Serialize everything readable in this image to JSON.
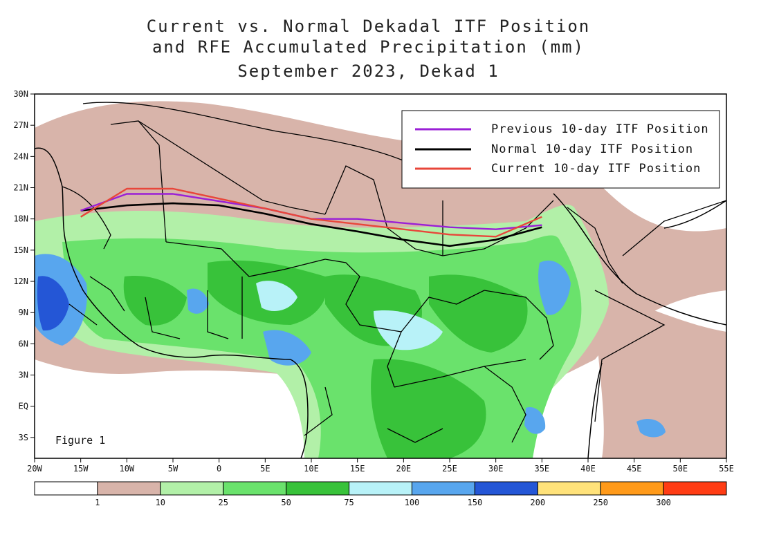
{
  "title": {
    "line1": "Current vs. Normal Dekadal ITF Position",
    "line2": "and RFE Accumulated Precipitation (mm)",
    "line3": "September 2023, Dekad 1"
  },
  "figure_label": "Figure 1",
  "axes": {
    "lat_labels": [
      "30N",
      "27N",
      "24N",
      "21N",
      "18N",
      "15N",
      "12N",
      "9N",
      "6N",
      "3N",
      "EQ",
      "3S"
    ],
    "lat_values": [
      30,
      27,
      24,
      21,
      18,
      15,
      12,
      9,
      6,
      3,
      0,
      -3
    ],
    "lon_labels": [
      "20W",
      "15W",
      "10W",
      "5W",
      "0",
      "5E",
      "10E",
      "15E",
      "20E",
      "25E",
      "30E",
      "35E",
      "40E",
      "45E",
      "50E",
      "55E"
    ],
    "lon_values": [
      -20,
      -15,
      -10,
      -5,
      0,
      5,
      10,
      15,
      20,
      25,
      30,
      35,
      40,
      45,
      50,
      55
    ],
    "lon_range": [
      -20,
      55
    ],
    "lat_range": [
      -5,
      30
    ]
  },
  "legend": {
    "items": [
      {
        "label": "Previous 10-day ITF Position",
        "color": "#9a1fd6",
        "key": "previous"
      },
      {
        "label": "Normal 10-day ITF Position",
        "color": "#000000",
        "key": "normal"
      },
      {
        "label": "Current 10-day ITF Position",
        "color": "#e8463a",
        "key": "current"
      }
    ]
  },
  "itf_lines": {
    "previous": [
      [
        -15,
        18.8
      ],
      [
        -10,
        20.4
      ],
      [
        -5,
        20.4
      ],
      [
        5,
        19.0
      ],
      [
        10,
        18.0
      ],
      [
        15,
        18.0
      ],
      [
        25,
        17.2
      ],
      [
        30,
        17.0
      ],
      [
        35,
        17.4
      ]
    ],
    "normal": [
      [
        -15,
        18.8
      ],
      [
        -10,
        19.3
      ],
      [
        -5,
        19.5
      ],
      [
        0,
        19.3
      ],
      [
        5,
        18.5
      ],
      [
        10,
        17.5
      ],
      [
        15,
        16.8
      ],
      [
        20,
        16.0
      ],
      [
        25,
        15.4
      ],
      [
        30,
        16.0
      ],
      [
        35,
        17.2
      ]
    ],
    "current": [
      [
        -15,
        18.2
      ],
      [
        -10,
        20.9
      ],
      [
        -5,
        20.9
      ],
      [
        5,
        19.0
      ],
      [
        10,
        18.0
      ],
      [
        15,
        17.5
      ],
      [
        25,
        16.5
      ],
      [
        30,
        16.3
      ],
      [
        35,
        18.2
      ]
    ]
  },
  "colorbar": {
    "colors": [
      "#ffffff",
      "#d8b4aa",
      "#b2f0a8",
      "#6ae26c",
      "#38c23a",
      "#b8f2f8",
      "#58a6ee",
      "#2456d6",
      "#ffe27a",
      "#ff9a1a",
      "#ff3c14"
    ],
    "tick_labels": [
      "1",
      "10",
      "25",
      "50",
      "75",
      "100",
      "150",
      "200",
      "250",
      "300"
    ]
  }
}
